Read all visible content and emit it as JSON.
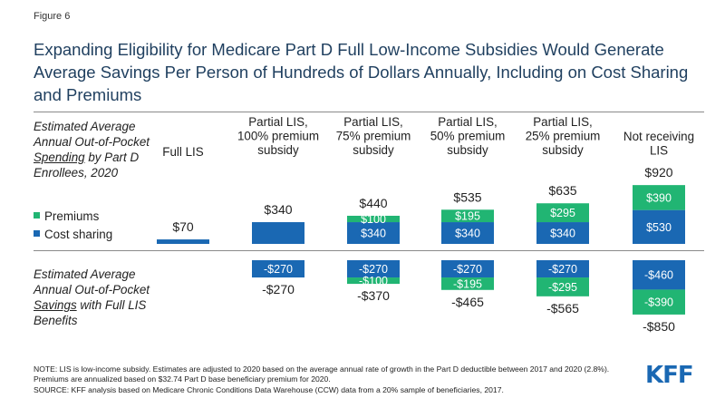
{
  "figure_label": "Figure 6",
  "title": "Expanding Eligibility for Medicare Part D Full Low-Income Subsidies Would Generate Average Savings Per Person of Hundreds of Dollars Annually, Including on Cost Sharing and Premiums",
  "row_spending": {
    "before": "Estimated Average Annual Out-of-Pocket ",
    "emph": "Spending",
    "after": " by Part D Enrollees, 2020"
  },
  "row_savings": {
    "before": "Estimated Average Annual Out-of-Pocket ",
    "emph": "Savings",
    "after": " with Full LIS Benefits"
  },
  "legend": [
    {
      "label": "Premiums",
      "color": "#21b573"
    },
    {
      "label": "Cost sharing",
      "color": "#1a68b3"
    }
  ],
  "chart_data": {
    "type": "bar",
    "stacked": true,
    "categories": [
      "Full LIS",
      "Partial LIS, 100% premium subsidy",
      "Partial LIS, 75% premium subsidy",
      "Partial LIS, 50% premium subsidy",
      "Partial LIS, 25% premium subsidy",
      "Not receiving LIS"
    ],
    "spending": {
      "series": [
        {
          "name": "Cost sharing",
          "color": "#1a68b3",
          "values": [
            70,
            340,
            340,
            340,
            340,
            530
          ],
          "labels": [
            "",
            "",
            "$340",
            "$340",
            "$340",
            "$530"
          ]
        },
        {
          "name": "Premiums",
          "color": "#21b573",
          "values": [
            0,
            0,
            100,
            195,
            295,
            390
          ],
          "labels": [
            "",
            "",
            "$100",
            "$195",
            "$295",
            "$390"
          ]
        }
      ],
      "totals": [
        "$70",
        "$340",
        "$440",
        "$535",
        "$635",
        "$920"
      ]
    },
    "savings": {
      "series": [
        {
          "name": "Cost sharing",
          "color": "#1a68b3",
          "values": [
            0,
            -270,
            -270,
            -270,
            -270,
            -460
          ],
          "labels": [
            "",
            "-$270",
            "-$270",
            "-$270",
            "-$270",
            "-$460"
          ]
        },
        {
          "name": "Premiums",
          "color": "#21b573",
          "values": [
            0,
            0,
            -100,
            -195,
            -295,
            -390
          ],
          "labels": [
            "",
            "",
            "-$100",
            "-$195",
            "-$295",
            "-$390"
          ]
        }
      ],
      "totals": [
        "",
        "-$270",
        "-$370",
        "-$465",
        "-$565",
        "-$850"
      ]
    }
  },
  "notes": {
    "note": "NOTE: LIS is low-income subsidy. Estimates are adjusted to 2020 based on the average annual rate of growth in the Part D deductible between 2017 and 2020 (2.8%). Premiums are annualized based on $32.74 Part D base beneficiary premium for 2020.",
    "source": "SOURCE: KFF analysis based on Medicare Chronic Conditions Data Warehouse (CCW) data from a 20% sample of beneficiaries, 2017."
  },
  "logo_text": "KFF"
}
